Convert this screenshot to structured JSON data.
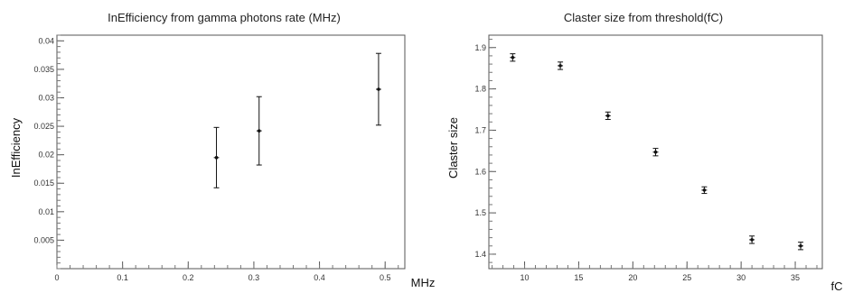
{
  "chart_data": [
    {
      "type": "scatter",
      "title": "InEfficiency from gamma photons rate (MHz)",
      "xlabel": "MHz",
      "ylabel": "InEfficiency",
      "xlim": [
        0,
        0.53
      ],
      "ylim": [
        0,
        0.041
      ],
      "xticks": [
        0,
        0.1,
        0.2,
        0.3,
        0.4,
        0.5
      ],
      "xtick_labels": [
        "0",
        "0.1",
        "0.2",
        "0.3",
        "0.4",
        "0.5"
      ],
      "yticks": [
        0.005,
        0.01,
        0.015,
        0.02,
        0.025,
        0.03,
        0.035,
        0.04
      ],
      "ytick_labels": [
        "0.005",
        "0.01",
        "0.015",
        "0.02",
        "0.025",
        "0.03",
        "0.035",
        "0.04"
      ],
      "x": [
        0.243,
        0.308,
        0.49
      ],
      "y": [
        0.0195,
        0.0242,
        0.0315
      ],
      "yerr": [
        0.0053,
        0.006,
        0.0063
      ],
      "xerr": [
        0.004,
        0.004,
        0.004
      ],
      "grid": false
    },
    {
      "type": "scatter",
      "title": "Claster size from threshold(fC)",
      "xlabel": "fC",
      "ylabel": "Claster size",
      "xlim": [
        6.7,
        37.5
      ],
      "ylim": [
        1.365,
        1.93
      ],
      "xticks": [
        10,
        15,
        20,
        25,
        30,
        35
      ],
      "xtick_labels": [
        "10",
        "15",
        "20",
        "25",
        "30",
        "35"
      ],
      "yticks": [
        1.4,
        1.5,
        1.6,
        1.7,
        1.8,
        1.9
      ],
      "ytick_labels": [
        "1.4",
        "1.5",
        "1.6",
        "1.7",
        "1.8",
        "1.9"
      ],
      "x": [
        8.9,
        13.3,
        17.7,
        22.1,
        26.6,
        31.0,
        35.5
      ],
      "y": [
        1.876,
        1.856,
        1.735,
        1.647,
        1.555,
        1.435,
        1.42
      ],
      "yerr": [
        0.009,
        0.009,
        0.009,
        0.009,
        0.008,
        0.009,
        0.009
      ],
      "xerr": [
        0.25,
        0.25,
        0.25,
        0.25,
        0.25,
        0.25,
        0.25
      ],
      "grid": false
    }
  ]
}
